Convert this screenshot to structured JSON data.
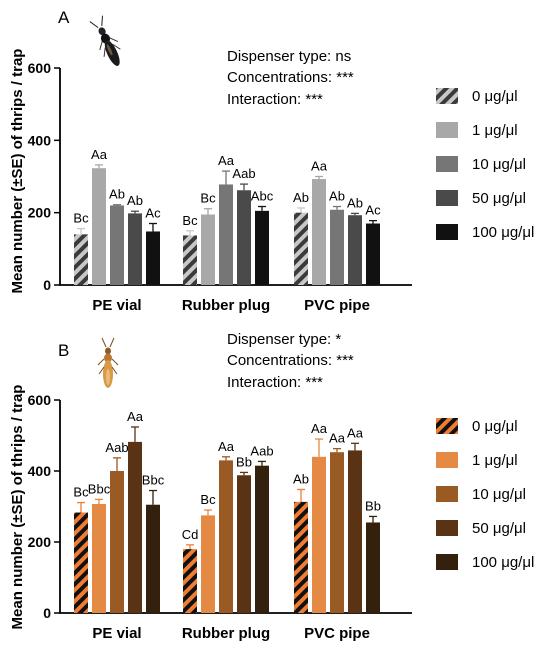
{
  "chart_data": [
    {
      "type": "bar",
      "panel_label": "A",
      "categories": [
        "PE vial",
        "Rubber plug",
        "PVC pipe"
      ],
      "ylabel": "Mean number (±SE) of thrips / trap",
      "ylim": [
        0,
        600
      ],
      "yticks": [
        0,
        200,
        400,
        600
      ],
      "grid": false,
      "legend_position": "right",
      "stats": [
        "Dispenser type: ns",
        "Concentrations: ***",
        "Interaction: ***"
      ],
      "series": [
        {
          "name": "0 μg/μl",
          "values": [
            140,
            137,
            200
          ],
          "errors": [
            16,
            13,
            13
          ],
          "labels": [
            "Bc",
            "Bc",
            "Ab"
          ],
          "color": "#c8c8c8",
          "hatch": true
        },
        {
          "name": "1 μg/μl",
          "values": [
            323,
            195,
            293
          ],
          "errors": [
            9,
            16,
            7
          ],
          "labels": [
            "Aa",
            "Bc",
            "Aa"
          ],
          "color": "#a8a8a8",
          "hatch": false
        },
        {
          "name": "10 μg/μl",
          "values": [
            220,
            278,
            208
          ],
          "errors": [
            2,
            37,
            9
          ],
          "labels": [
            "Ab",
            "Aa",
            "Ab"
          ],
          "color": "#767676",
          "hatch": false
        },
        {
          "name": "50 μg/μl",
          "values": [
            198,
            262,
            193
          ],
          "errors": [
            6,
            17,
            5
          ],
          "labels": [
            "Ab",
            "Aab",
            "Ab"
          ],
          "color": "#4a4a4a",
          "hatch": false
        },
        {
          "name": "100 μg/μl",
          "values": [
            148,
            205,
            170
          ],
          "errors": [
            22,
            12,
            8
          ],
          "labels": [
            "Ac",
            "Abc",
            "Ac"
          ],
          "color": "#111111",
          "hatch": false
        }
      ]
    },
    {
      "type": "bar",
      "panel_label": "B",
      "categories": [
        "PE vial",
        "Rubber plug",
        "PVC pipe"
      ],
      "ylabel": "Mean number (±SE) of thrips / trap",
      "ylim": [
        0,
        600
      ],
      "yticks": [
        0,
        200,
        400,
        600
      ],
      "grid": false,
      "legend_position": "right",
      "stats": [
        "Dispenser type: *",
        "Concentrations: ***",
        "Interaction: ***"
      ],
      "series": [
        {
          "name": "0 μg/μl",
          "values": [
            283,
            180,
            313
          ],
          "errors": [
            28,
            12,
            35
          ],
          "labels": [
            "Bc",
            "Cd",
            "Ab"
          ],
          "color": "#f07d32",
          "hatch": true
        },
        {
          "name": "1 μg/μl",
          "values": [
            307,
            275,
            440
          ],
          "errors": [
            13,
            15,
            50
          ],
          "labels": [
            "Bbc",
            "Bc",
            "Aa"
          ],
          "color": "#e58a45",
          "hatch": false
        },
        {
          "name": "10 μg/μl",
          "values": [
            400,
            430,
            453
          ],
          "errors": [
            37,
            10,
            10
          ],
          "labels": [
            "Aab",
            "Aa",
            "Aa"
          ],
          "color": "#9a5a24",
          "hatch": false
        },
        {
          "name": "50 μg/μl",
          "values": [
            482,
            388,
            458
          ],
          "errors": [
            42,
            8,
            20
          ],
          "labels": [
            "Aa",
            "Bb",
            "Aa"
          ],
          "color": "#5a3214",
          "hatch": false
        },
        {
          "name": "100 μg/μl",
          "values": [
            305,
            415,
            255
          ],
          "errors": [
            40,
            12,
            17
          ],
          "labels": [
            "Bbc",
            "Aab",
            "Bb"
          ],
          "color": "#33200d",
          "hatch": false
        }
      ]
    }
  ],
  "icons": {
    "panel_a": "dark-thrips-icon",
    "panel_b": "orange-thrips-icon"
  }
}
